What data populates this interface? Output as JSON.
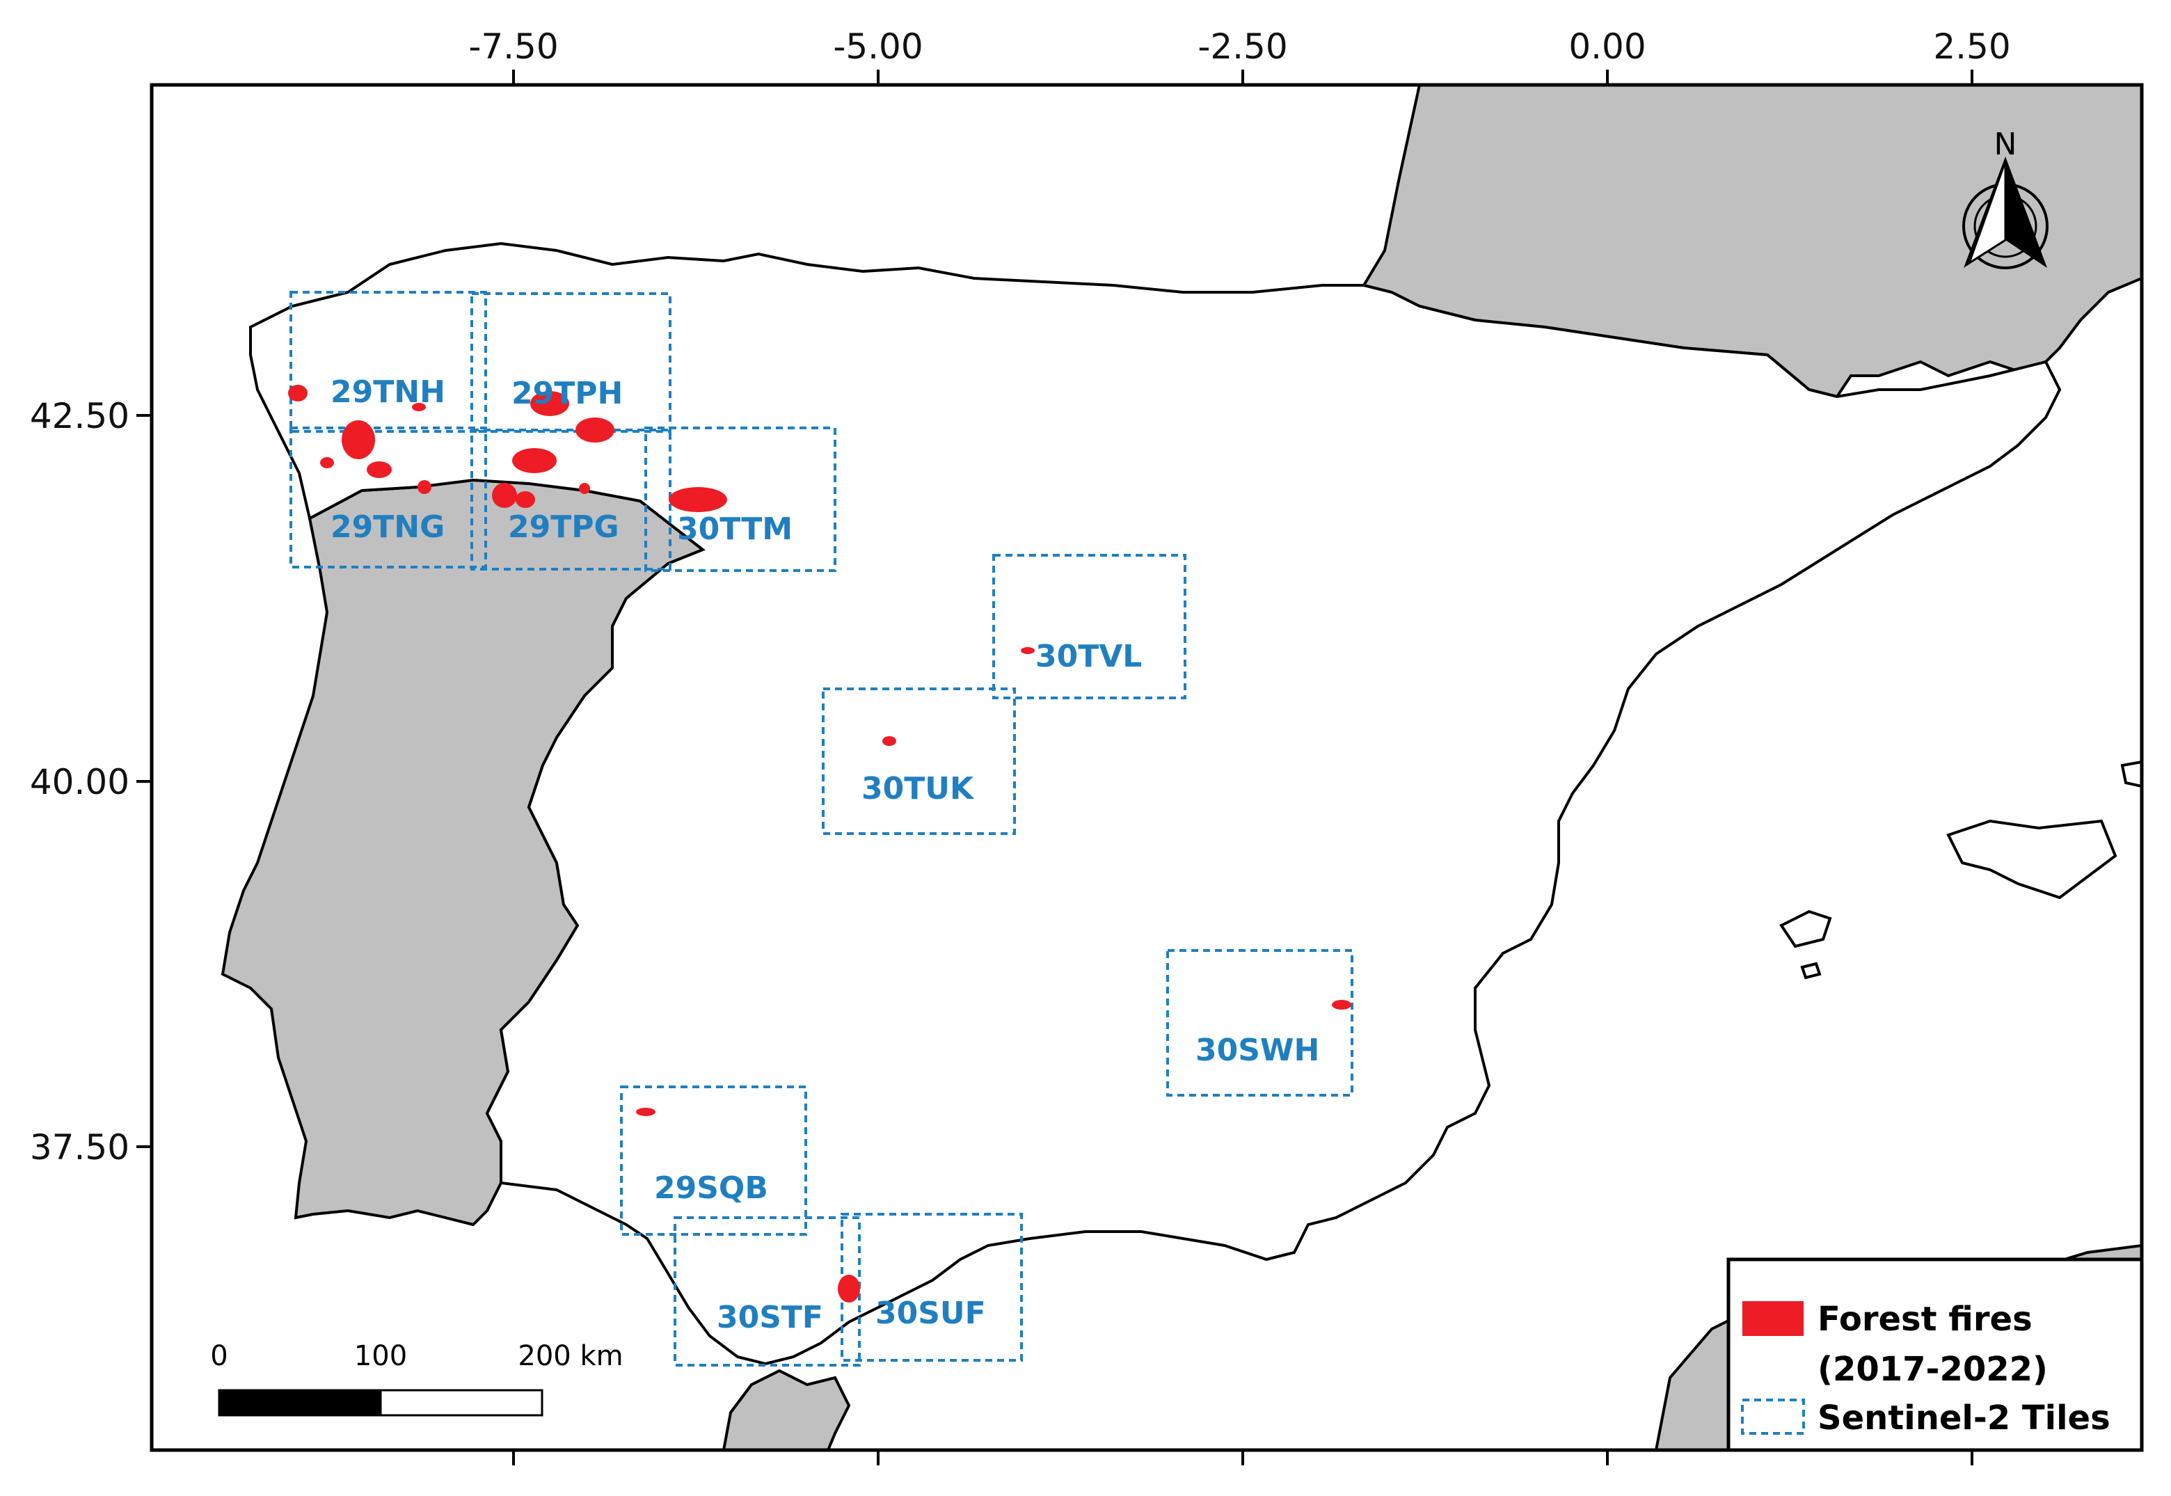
{
  "axes": {
    "x_ticks": [
      "-7.50",
      "-5.00",
      "-2.50",
      "0.00",
      "2.50"
    ],
    "y_ticks": [
      "42.50",
      "40.00",
      "37.50"
    ]
  },
  "tiles": [
    {
      "id": "29TNH",
      "label": "29TNH"
    },
    {
      "id": "29TPH",
      "label": "29TPH"
    },
    {
      "id": "29TNG",
      "label": "29TNG"
    },
    {
      "id": "29TPG",
      "label": "29TPG"
    },
    {
      "id": "30TTM",
      "label": "30TTM"
    },
    {
      "id": "30TVL",
      "label": "30TVL"
    },
    {
      "id": "30TUK",
      "label": "30TUK"
    },
    {
      "id": "30SWH",
      "label": "30SWH"
    },
    {
      "id": "29SQB",
      "label": "29SQB"
    },
    {
      "id": "30STF",
      "label": "30STF"
    },
    {
      "id": "30SUF",
      "label": "30SUF"
    }
  ],
  "legend": {
    "fires_line1": "Forest fires",
    "fires_line2": "(2017-2022)",
    "tiles": "Sentinel-2 Tiles"
  },
  "scale_bar": {
    "label_0": "0",
    "label_100": "100",
    "label_200": "200 km"
  },
  "north_arrow": {
    "label": "N"
  },
  "colors": {
    "fire": "#ee1c24",
    "tile": "#1f7fc0",
    "other_land": "#c0c0c0",
    "spain": "#ffffff",
    "outline": "#000000"
  }
}
